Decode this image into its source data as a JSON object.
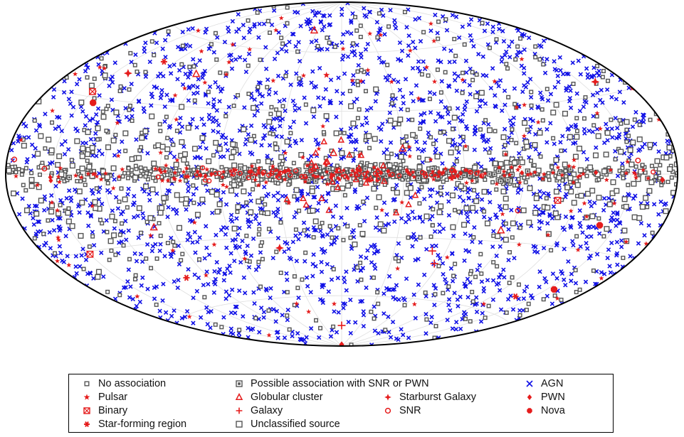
{
  "chart_data": {
    "type": "scatter",
    "projection": "Aitoff/Hammer all-sky (Galactic coordinates)",
    "x_unit": "Galactic longitude (deg)",
    "y_unit": "Galactic latitude (deg)",
    "x_range": [
      -180,
      180
    ],
    "y_range": [
      -90,
      90
    ],
    "grid": true,
    "legend_position": "bottom",
    "legend": [
      {
        "key": "none",
        "label": "No association",
        "symbol": "square-open-small",
        "color": "#555555"
      },
      {
        "key": "possible",
        "label": "Possible association with SNR or PWN",
        "symbol": "square-dot",
        "color": "#555555"
      },
      {
        "key": "agn",
        "label": "AGN",
        "symbol": "x",
        "color": "#1010e6"
      },
      {
        "key": "pulsar",
        "label": "Pulsar",
        "symbol": "star",
        "color": "#e51c1c"
      },
      {
        "key": "globular",
        "label": "Globular cluster",
        "symbol": "triangle-open",
        "color": "#e51c1c"
      },
      {
        "key": "starburst",
        "label": "Starburst Galaxy",
        "symbol": "diamond-star",
        "color": "#e51c1c"
      },
      {
        "key": "pwn",
        "label": "PWN",
        "symbol": "diamond",
        "color": "#e51c1c"
      },
      {
        "key": "binary",
        "label": "Binary",
        "symbol": "square-x",
        "color": "#e51c1c"
      },
      {
        "key": "galaxy",
        "label": "Galaxy",
        "symbol": "plus",
        "color": "#e51c1c"
      },
      {
        "key": "snr",
        "label": "SNR",
        "symbol": "circle-open",
        "color": "#e51c1c"
      },
      {
        "key": "nova",
        "label": "Nova",
        "symbol": "octagon",
        "color": "#e51c1c"
      },
      {
        "key": "sfr",
        "label": "Star-forming region",
        "symbol": "asterisk",
        "color": "#e51c1c"
      },
      {
        "key": "unclass",
        "label": "Unclassified source",
        "symbol": "square-open",
        "color": "#555555"
      }
    ],
    "series": [
      {
        "key": "agn",
        "distribution": "isotropic",
        "approx_count": 1900
      },
      {
        "key": "none",
        "distribution": "concentrated along Galactic plane, many at high latitude",
        "approx_count": 1050
      },
      {
        "key": "unclass",
        "distribution": "mostly low latitude",
        "approx_count": 320
      },
      {
        "key": "possible",
        "distribution": "Galactic plane",
        "approx_count": 80
      },
      {
        "key": "pulsar",
        "distribution": "Galactic plane plus scattered millisecond pulsars",
        "approx_count": 250
      },
      {
        "key": "snr",
        "distribution": "Galactic plane",
        "approx_count": 40
      },
      {
        "key": "pwn",
        "distribution": "Galactic plane",
        "approx_count": 20
      },
      {
        "key": "binary",
        "distribution": "Galactic plane",
        "approx_count": 10
      },
      {
        "key": "globular",
        "distribution": "inner Galaxy",
        "approx_count": 30
      },
      {
        "key": "galaxy",
        "distribution": "isotropic",
        "approx_count": 8
      },
      {
        "key": "starburst",
        "distribution": "isotropic",
        "approx_count": 8
      },
      {
        "key": "sfr",
        "distribution": "isotropic",
        "approx_count": 4
      },
      {
        "key": "nova",
        "distribution": "isotropic",
        "approx_count": 4
      }
    ],
    "highlighted_points": [
      {
        "key": "pulsar",
        "l": 10,
        "b": 48
      },
      {
        "key": "globular",
        "l": 35,
        "b": 72
      },
      {
        "key": "globular",
        "l": 96,
        "b": 45
      },
      {
        "key": "globular",
        "l": 100,
        "b": -23
      },
      {
        "key": "globular",
        "l": 4,
        "b": 10
      },
      {
        "key": "globular",
        "l": -30,
        "b": 12
      },
      {
        "key": "globular",
        "l": -85,
        "b": -25
      },
      {
        "key": "starburst",
        "l": 141,
        "b": 41
      },
      {
        "key": "starburst",
        "l": -160,
        "b": 35
      },
      {
        "key": "starburst",
        "l": 35,
        "b": -35
      },
      {
        "key": "sfr",
        "l": 128,
        "b": 48
      },
      {
        "key": "sfr",
        "l": 105,
        "b": -46
      },
      {
        "key": "sfr",
        "l": -137,
        "b": -52
      },
      {
        "key": "binary",
        "l": -110,
        "b": -11
      },
      {
        "key": "binary",
        "l": 150,
        "b": -31
      },
      {
        "key": "binary",
        "l": 150,
        "b": 32
      },
      {
        "key": "galaxy",
        "l": -52,
        "b": -36
      },
      {
        "key": "galaxy",
        "l": -57,
        "b": -42
      },
      {
        "key": "galaxy",
        "l": 0,
        "b": -77
      },
      {
        "key": "snr",
        "l": -90,
        "b": -16
      },
      {
        "key": "snr",
        "l": -155,
        "b": 5
      },
      {
        "key": "snr",
        "l": 175,
        "b": 5
      },
      {
        "key": "snr",
        "l": 155,
        "b": 2
      },
      {
        "key": "pwn",
        "l": -170,
        "b": -2
      },
      {
        "key": "pwn",
        "l": 0,
        "b": -89
      },
      {
        "key": "nova",
        "l": -140,
        "b": -20
      },
      {
        "key": "nova",
        "l": -155,
        "b": -46
      },
      {
        "key": "nova",
        "l": 143,
        "b": 28
      }
    ]
  }
}
